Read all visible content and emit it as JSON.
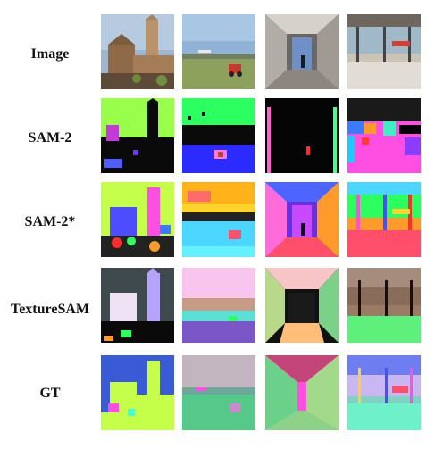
{
  "figure": {
    "rows": [
      {
        "label": "Image"
      },
      {
        "label": "SAM-2"
      },
      {
        "label": "SAM-2*"
      },
      {
        "label": "TextureSAM"
      },
      {
        "label": "GT"
      }
    ],
    "columns": [
      "cathedral",
      "field",
      "corridor",
      "station"
    ]
  }
}
